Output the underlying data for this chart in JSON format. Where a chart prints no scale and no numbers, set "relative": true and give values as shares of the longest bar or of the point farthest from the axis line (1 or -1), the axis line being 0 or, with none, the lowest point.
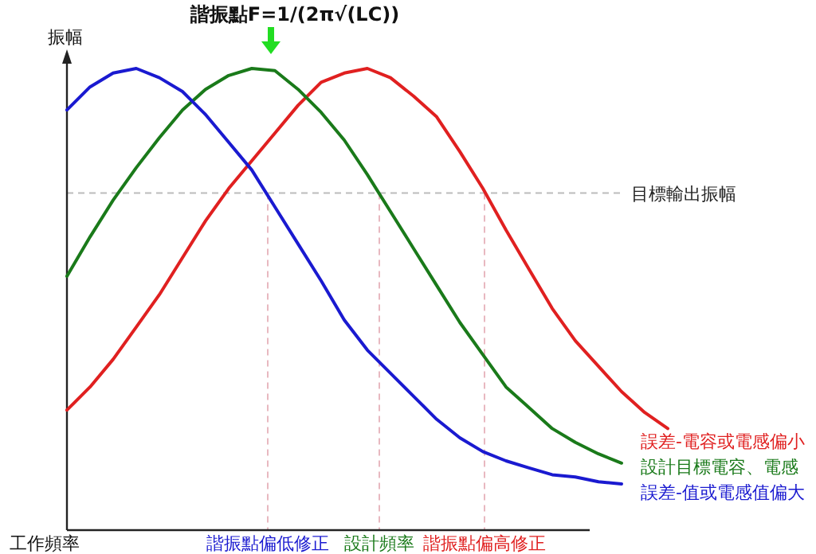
{
  "chart_data": {
    "type": "line",
    "relative": true,
    "title": "諧振點F=1/(2π√(LC))",
    "xlabel": "工作頻率",
    "ylabel": "振幅",
    "legend": false,
    "marker": "none",
    "categories": [
      null,
      null,
      null,
      null,
      null,
      null,
      null,
      null,
      null,
      null,
      null,
      null,
      null,
      null,
      null,
      null,
      null,
      null,
      null,
      null,
      null,
      null,
      null,
      null,
      null,
      null,
      null
    ],
    "series": [
      {
        "name": "誤差-電容或電感偏小",
        "color": "#e02020",
        "values": [
          0.26,
          0.31,
          0.37,
          0.44,
          0.51,
          0.59,
          0.67,
          0.74,
          0.8,
          0.86,
          0.92,
          0.97,
          0.99,
          1.0,
          0.98,
          0.94,
          0.895,
          0.82,
          0.74,
          0.65,
          0.565,
          0.48,
          0.41,
          0.355,
          0.3,
          0.255,
          0.22
        ]
      },
      {
        "name": "設計目標電容、電感",
        "color": "#1a7a1a",
        "values": [
          0.55,
          0.635,
          0.715,
          0.785,
          0.85,
          0.91,
          0.955,
          0.985,
          1.0,
          0.995,
          0.955,
          0.905,
          0.845,
          0.77,
          0.69,
          0.61,
          0.53,
          0.45,
          0.38,
          0.31,
          0.265,
          0.22,
          0.19,
          0.165,
          0.145,
          null,
          null
        ]
      },
      {
        "name": "誤差-值或電感值偏大",
        "color": "#1a1ad0",
        "values": [
          0.91,
          0.96,
          0.99,
          1.0,
          0.98,
          0.95,
          0.9,
          0.84,
          0.78,
          0.7,
          0.62,
          0.54,
          0.455,
          0.39,
          0.34,
          0.29,
          0.24,
          0.2,
          0.17,
          0.15,
          0.135,
          0.12,
          0.115,
          0.105,
          0.1,
          null,
          null
        ]
      }
    ],
    "ref_lines": [
      {
        "axis": "y",
        "value": 0.73,
        "label": "目標輸出振幅",
        "color": "#bbbbbb",
        "line_style": "dashed"
      }
    ],
    "annotations": [
      "諧振點偏低修正",
      "設計頻率",
      "諧振點偏高修正"
    ]
  }
}
